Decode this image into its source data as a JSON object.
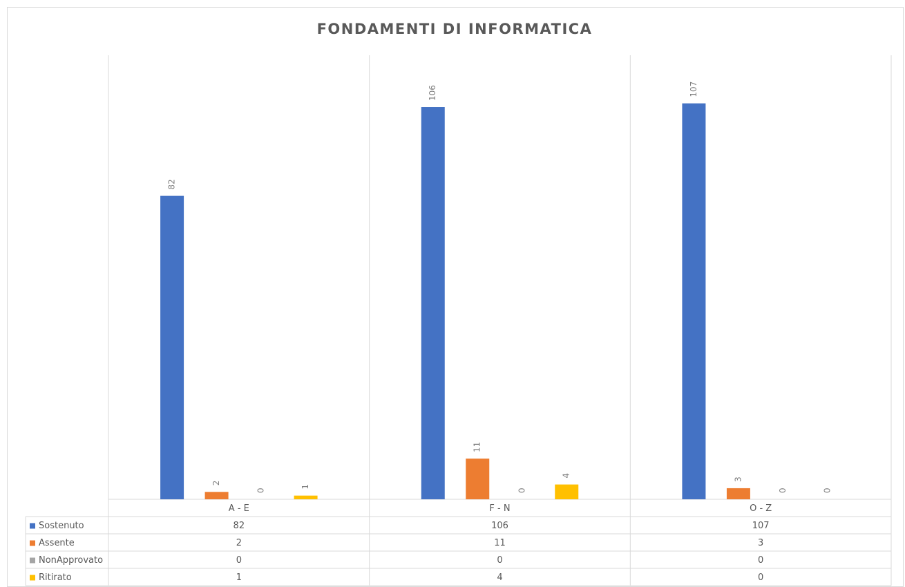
{
  "chart_data": {
    "type": "bar",
    "title": "FONDAMENTI DI INFORMATICA",
    "categories": [
      "A - E",
      "F - N",
      "O - Z"
    ],
    "series": [
      {
        "name": "Sostenuto",
        "color": "#4472c4",
        "values": [
          82,
          106,
          107
        ]
      },
      {
        "name": "Assente",
        "color": "#ed7d31",
        "values": [
          2,
          11,
          3
        ]
      },
      {
        "name": "NonApprovato",
        "color": "#a5a5a5",
        "values": [
          0,
          0,
          0
        ]
      },
      {
        "name": "Ritirato",
        "color": "#ffc000",
        "values": [
          1,
          4,
          0
        ]
      }
    ],
    "ylim": [
      0,
      120
    ],
    "data_table": true,
    "data_labels": true
  }
}
